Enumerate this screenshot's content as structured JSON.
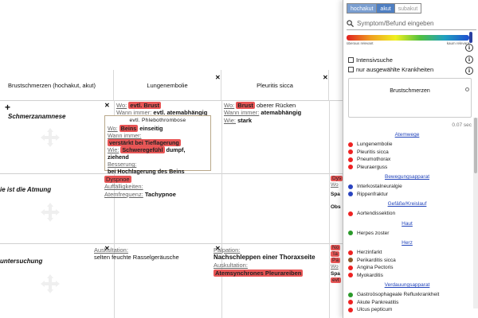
{
  "grid": {
    "headers": [
      "Brustschmerzen (hochakut, akut)",
      "Lungenembolie",
      "Pleuritis sicca"
    ],
    "rows": [
      {
        "label": "Schmerzanamnese"
      },
      {
        "label": "ie ist die Atmung"
      },
      {
        "label": "untersuchung"
      }
    ],
    "lungenembolie": {
      "r1": {
        "wo_label": "Wo:",
        "wo_val": "evtl. Brust",
        "wann_label": "Wann immer:",
        "wann_val": "evtl. atemabhängig",
        "nested": {
          "title": "evtl. Phlebothrombose",
          "wo_label": "Wo:",
          "wo_val": "Beins",
          "wo_suffix": "einseitig",
          "wann_label": "Wann immer:",
          "wann_val": "verstärkt bei Tieflagerung",
          "wie_label": "Wie:",
          "wie_val": "Schweregefühl",
          "wie_suffix": "dumpf, ziehend",
          "bess_label": "Besserung:",
          "bess_val": "bei Hochlagerung des Beins"
        }
      },
      "r2": {
        "dyspnoe": "Dyspnoe",
        "auff_label": "Auffälligkeiten:",
        "atem_label": "Atemfrequenz:",
        "atem_val": "Tachypnoe"
      },
      "r3": {
        "ausk_label": "Auskultation:",
        "ausk_val": "selten feuchte Rasselgeräusche"
      }
    },
    "pleuritis": {
      "r1": {
        "wo_label": "Wo:",
        "wo_val": "Brust",
        "wo_suffix": "oberer Rücken",
        "wann_label": "Wann immer:",
        "wann_val": "atemabhängig",
        "wie_label": "Wie:",
        "wie_val": "stark"
      },
      "r3": {
        "palp_label": "Palpation:",
        "palp_val": "Nachschleppen einer Thoraxseite",
        "ausk_label": "Auskultation:",
        "ausk_val": "Atemsynchrones Pleurareiben"
      }
    },
    "partial": {
      "dys": "Dys",
      "wo": "Wo",
      "spa": "Spa",
      "obs": "Obs",
      "no": "No",
      "ta": "Ta",
      "pa": "Pa",
      "wo2": "Wo",
      "spa2": "Spa",
      "evt": "evt"
    }
  },
  "panel": {
    "tabs": [
      "hochakut",
      "akut",
      "subakut"
    ],
    "search_placeholder": "Symptom/Befund eingeben",
    "grad_left": "überaus relevant",
    "grad_right": "kaum relevant",
    "chk1": "Intensivsuche",
    "chk2": "nur ausgewählte Krankheiten",
    "info_glyph": "i",
    "box_title": "Brustschmerzen",
    "box_sub": "",
    "timing": "0.07 sec",
    "categories": [
      {
        "name": "Atemwege",
        "items": [
          {
            "label": "Lungenembolie",
            "color": "r"
          },
          {
            "label": "Pleuritis sicca",
            "color": "r"
          },
          {
            "label": "Pneumothorax",
            "color": "r"
          },
          {
            "label": "Pleuraerguss",
            "color": "r"
          }
        ]
      },
      {
        "name": "Bewegungsapparat",
        "items": [
          {
            "label": "Interkostalneuralgie",
            "color": "b"
          },
          {
            "label": "Rippenfraktur",
            "color": "b"
          }
        ]
      },
      {
        "name": "Gefäße/Kreislauf",
        "items": [
          {
            "label": "Aortendissektion",
            "color": "r"
          }
        ]
      },
      {
        "name": "Haut",
        "items": [
          {
            "label": "Herpes zoster",
            "color": "g"
          }
        ]
      },
      {
        "name": "Herz",
        "items": [
          {
            "label": "Herzinfarkt",
            "color": "r"
          },
          {
            "label": "Perikarditis sicca",
            "color": "br"
          },
          {
            "label": "Angina Pectoris",
            "color": "r"
          },
          {
            "label": "Myokarditis",
            "color": "r"
          }
        ]
      },
      {
        "name": "Verdauungsapparat",
        "items": [
          {
            "label": "Gastroösophageale Refluxkrankheit",
            "color": "g"
          },
          {
            "label": "Akute Pankreatitis",
            "color": "r"
          },
          {
            "label": "Ulcus pepticum",
            "color": "r"
          }
        ]
      }
    ]
  }
}
